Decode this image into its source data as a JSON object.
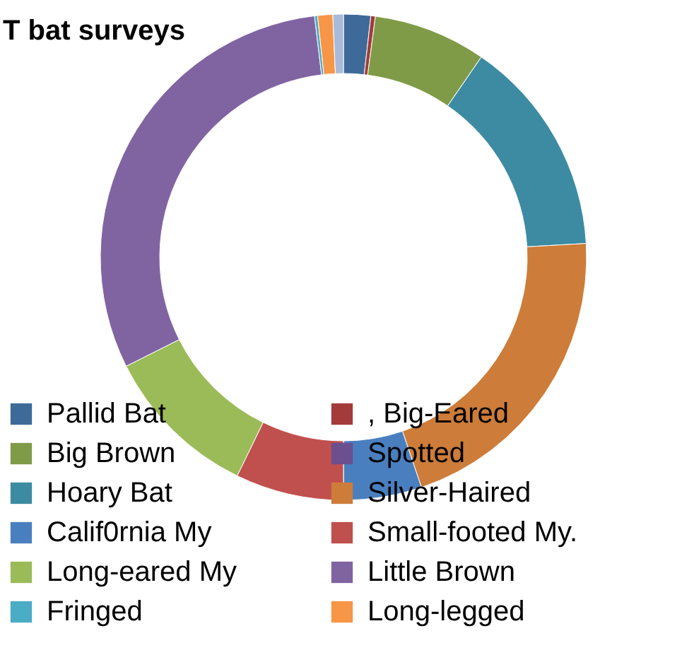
{
  "chart_data": {
    "type": "donut",
    "title": "T bat surveys",
    "categories": [
      "Pallid Bat",
      ", Big-Eared",
      "Big Brown",
      "Spotted",
      "Hoary Bat",
      "Silver-Haired",
      "Calif0rnia My",
      "Small-footed My.",
      "Long-eared My",
      "Little Brown",
      "Fringed",
      "Long-legged",
      null
    ],
    "values": [
      1.8,
      0.3,
      7.5,
      0,
      14.5,
      20.7,
      5.2,
      7.2,
      10.4,
      30.5,
      0.2,
      1.0,
      0.7
    ],
    "colors": [
      "#3e6a9a",
      "#a33b3b",
      "#7f9b48",
      "#6b4f8f",
      "#3c8ba3",
      "#cd7c39",
      "#4a7fbf",
      "#c0504d",
      "#9bbb59",
      "#8064a2",
      "#4bacc6",
      "#f79646",
      "#a9bbd8"
    ],
    "legend": "bottom"
  }
}
